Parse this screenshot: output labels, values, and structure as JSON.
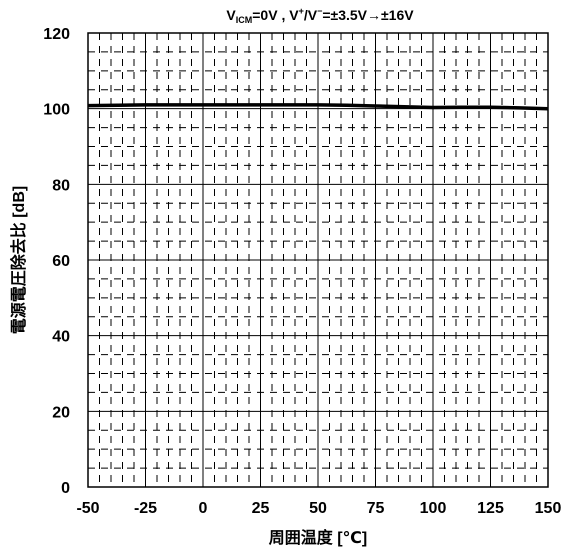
{
  "chart_data": {
    "type": "line",
    "title_parts": {
      "v": "V",
      "icm": "ICM",
      "mid": "=0V , V",
      "plus": "+",
      "slash": "/V",
      "minus": "−",
      "tail": "=±3.5V→±16V"
    },
    "xlabel": "周囲温度 [℃]",
    "ylabel": "電源電圧除去比 [dB]",
    "xlim": [
      -50,
      150
    ],
    "ylim": [
      0,
      120
    ],
    "xticks": [
      -50,
      -25,
      0,
      25,
      50,
      75,
      100,
      125,
      150
    ],
    "yticks": [
      0,
      20,
      40,
      60,
      80,
      100,
      120
    ],
    "grid": true,
    "series": [
      {
        "color": "#000000",
        "x": [
          -50,
          -25,
          0,
          25,
          50,
          62.5,
          75,
          87.5,
          100,
          112.5,
          125,
          137.5,
          150
        ],
        "y": [
          100.8,
          101.0,
          101.0,
          101.0,
          101.0,
          100.9,
          100.7,
          100.5,
          100.3,
          100.4,
          100.4,
          100.2,
          100.0
        ]
      }
    ]
  }
}
